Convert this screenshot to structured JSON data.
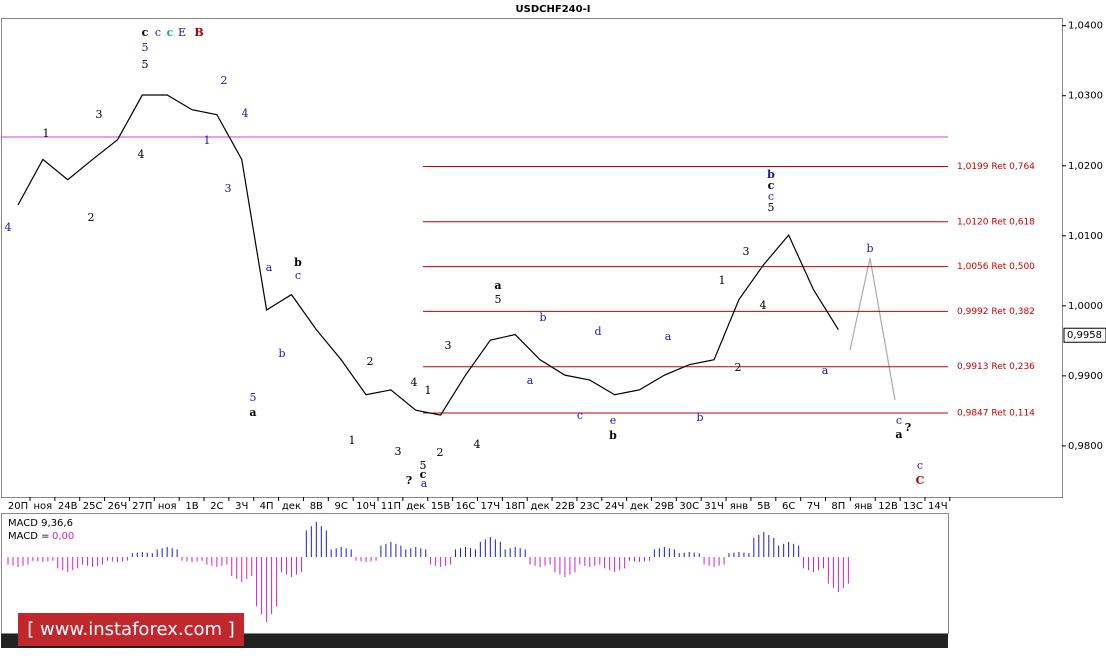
{
  "chart_data": {
    "type": "line",
    "title": "USDCHF240-I",
    "categories": [
      "20П",
      "ноя",
      "24В",
      "25С",
      "26Ч",
      "27П",
      "ноя",
      "1В",
      "2С",
      "3Ч",
      "4П",
      "дек",
      "8В",
      "9С",
      "10Ч",
      "11П",
      "дек",
      "15В",
      "16С",
      "17Ч",
      "18П",
      "дек",
      "22В",
      "23С",
      "24Ч",
      "дек",
      "29В",
      "30С",
      "31Ч",
      "янв",
      "5В",
      "6С",
      "7Ч",
      "8П",
      "янв",
      "12В",
      "13С",
      "14Ч"
    ],
    "series": [
      {
        "name": "USDCHF",
        "color": "#000000",
        "values": [
          1.0144,
          1.0209,
          1.018,
          1.0209,
          1.0237,
          1.0301,
          1.0301,
          1.028,
          1.0273,
          1.0209,
          0.9994,
          1.0016,
          0.9966,
          0.9923,
          0.9873,
          0.988,
          0.9851,
          0.9844,
          0.9901,
          0.9951,
          0.9959,
          0.9923,
          0.9901,
          0.9894,
          0.9873,
          0.988,
          0.9901,
          0.9916,
          0.9923,
          1.0009,
          1.0059,
          1.0101,
          1.0023,
          0.9966,
          null,
          null,
          null,
          null
        ]
      }
    ],
    "ylim": [
      0.9727,
      1.0411
    ],
    "yticks": [
      {
        "value": 0.98,
        "label": "0,9800"
      },
      {
        "value": 0.99,
        "label": "0,9900"
      },
      {
        "value": 1.0,
        "label": "1,0000"
      },
      {
        "value": 1.01,
        "label": "1,0100"
      },
      {
        "value": 1.02,
        "label": "1,0200"
      },
      {
        "value": 1.03,
        "label": "1,0300"
      },
      {
        "value": 1.04,
        "label": "1,0400"
      }
    ],
    "current_price": {
      "value": 0.9958,
      "label": "0,9958"
    },
    "level_line": {
      "value": 1.0241,
      "color": "#cc44cc"
    },
    "fib_color": "#cc0000",
    "fib_levels": [
      {
        "value": 1.0199,
        "label": "1,0199 Ret 0,764"
      },
      {
        "value": 1.012,
        "label": "1,0120 Ret 0,618"
      },
      {
        "value": 1.0056,
        "label": "1,0056 Ret 0,500"
      },
      {
        "value": 0.9992,
        "label": "0,9992 Ret 0,382"
      },
      {
        "value": 0.9913,
        "label": "0,9913 Ret 0,236"
      },
      {
        "value": 0.9847,
        "label": "0,9847 Ret 0,114"
      }
    ],
    "wave_labels": [
      {
        "text": "c",
        "color": "#000000"
      },
      {
        "text": "5",
        "color": "#1a1aaa"
      },
      {
        "text": "c",
        "color": "#1a1aaa"
      },
      {
        "text": "c",
        "color": "#1a9bdc"
      },
      {
        "text": "E",
        "color": "#1a1aaa"
      },
      {
        "text": "B",
        "color": "#aa0000"
      },
      {
        "text": "5",
        "color": "#000000"
      },
      {
        "text": "1",
        "color": "#000000"
      },
      {
        "text": "3",
        "color": "#000000"
      },
      {
        "text": "4",
        "color": "#000000"
      },
      {
        "text": "1",
        "color": "#1a1aaa"
      },
      {
        "text": "2",
        "color": "#1a1aaa"
      },
      {
        "text": "3",
        "color": "#1a1aaa"
      },
      {
        "text": "4",
        "color": "#1a1aaa"
      },
      {
        "text": "4",
        "color": "#1a1aaa"
      },
      {
        "text": "2",
        "color": "#000000"
      },
      {
        "text": "a",
        "color": "#1a1aaa"
      },
      {
        "text": "b",
        "color": "#000000"
      },
      {
        "text": "c",
        "color": "#1a1aaa"
      },
      {
        "text": "b",
        "color": "#1a1aaa"
      },
      {
        "text": "5",
        "color": "#1a1aaa"
      },
      {
        "text": "a",
        "color": "#000000"
      },
      {
        "text": "2",
        "color": "#000000"
      },
      {
        "text": "1",
        "color": "#000000"
      },
      {
        "text": "3",
        "color": "#000000"
      },
      {
        "text": "4",
        "color": "#000000"
      },
      {
        "text": "1",
        "color": "#000000"
      },
      {
        "text": "2",
        "color": "#000000"
      },
      {
        "text": "5",
        "color": "#000000"
      },
      {
        "text": "c",
        "color": "#000000"
      },
      {
        "text": "a",
        "color": "#1a1aaa"
      },
      {
        "text": "?",
        "color": "#000000"
      },
      {
        "text": "3",
        "color": "#000000"
      },
      {
        "text": "4",
        "color": "#000000"
      },
      {
        "text": "a",
        "color": "#000000"
      },
      {
        "text": "5",
        "color": "#000000"
      },
      {
        "text": "b",
        "color": "#1a1aaa"
      },
      {
        "text": "a",
        "color": "#1a1aaa"
      },
      {
        "text": "c",
        "color": "#1a1aaa"
      },
      {
        "text": "d",
        "color": "#1a1aaa"
      },
      {
        "text": "e",
        "color": "#1a1aaa"
      },
      {
        "text": "b",
        "color": "#000000"
      },
      {
        "text": "a",
        "color": "#1a1aaa"
      },
      {
        "text": "b",
        "color": "#1a1aaa"
      },
      {
        "text": "1",
        "color": "#000000"
      },
      {
        "text": "2",
        "color": "#000000"
      },
      {
        "text": "3",
        "color": "#000000"
      },
      {
        "text": "4",
        "color": "#000000"
      },
      {
        "text": "b",
        "color": "#1a1a88"
      },
      {
        "text": "c",
        "color": "#000000"
      },
      {
        "text": "c",
        "color": "#1a1aaa"
      },
      {
        "text": "5",
        "color": "#000000"
      },
      {
        "text": "a",
        "color": "#1a1aaa"
      },
      {
        "text": "b",
        "color": "#1a1aaa"
      },
      {
        "text": "c",
        "color": "#1a1aaa"
      },
      {
        "text": "a",
        "color": "#000000"
      },
      {
        "text": "?",
        "color": "#000000"
      },
      {
        "text": "c",
        "color": "#1a1aaa"
      },
      {
        "text": "C",
        "color": "#aa0000"
      }
    ],
    "macd": {
      "title": "MACD 9,36,6",
      "value_label": "MACD =",
      "value": "0,00",
      "color": "#1a1acc",
      "negative_color": "#cc22cc",
      "values": [
        -10,
        -5,
        -15,
        -10,
        -5,
        5,
        10,
        -5,
        -10,
        -25,
        -65,
        -20,
        35,
        10,
        -5,
        15,
        10,
        -10,
        10,
        20,
        10,
        -10,
        -20,
        -10,
        -15,
        -5,
        10,
        5,
        -10,
        5,
        25,
        15,
        -15,
        -35,
        null,
        null,
        null,
        null
      ]
    },
    "watermark": "[ www.instaforex.com ]"
  }
}
